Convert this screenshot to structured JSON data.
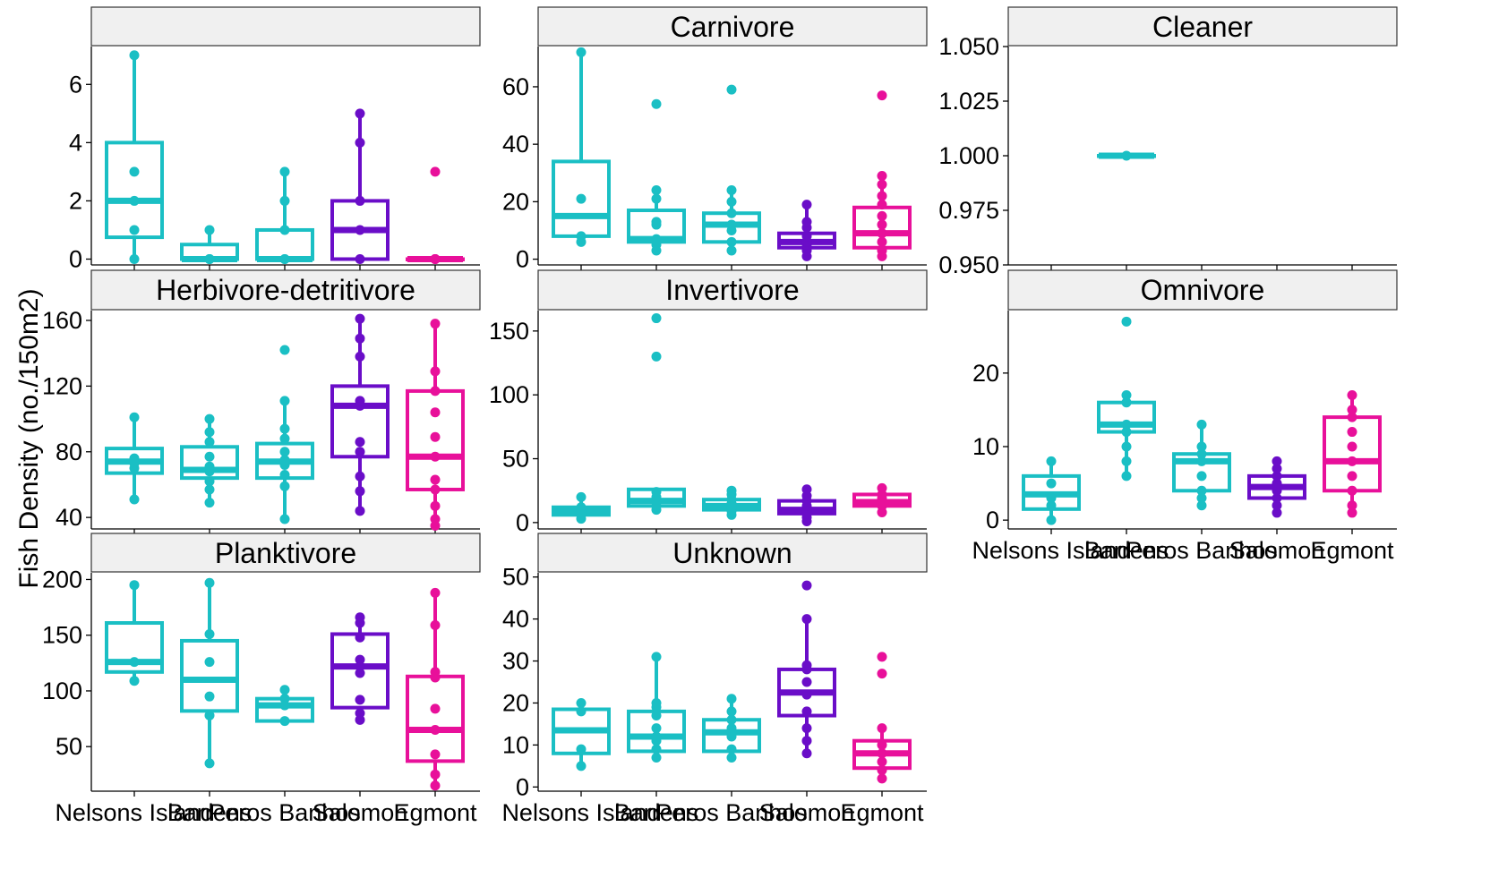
{
  "figure": {
    "ylabel": "Fish Density (no./150m2)",
    "colors": {
      "Nelsons Island": "#1ABFC4",
      "Barrens": "#1ABFC4",
      "Peros Banhos": "#1ABFC4",
      "Salomon": "#6A0DC8",
      "Egmont": "#E8109A"
    }
  },
  "chart_data": [
    {
      "type": "box",
      "title": "",
      "categories": [
        "Nelsons Island",
        "Barrens",
        "Peros Banhos",
        "Salomon",
        "Egmont"
      ],
      "yticks": [
        0,
        2,
        4,
        6
      ],
      "ylim": [
        -0.2,
        7.3
      ],
      "boxes": [
        {
          "category": "Nelsons Island",
          "q1": 0.75,
          "median": 2,
          "q3": 4,
          "whisker_low": 0,
          "whisker_high": 7,
          "points": [
            0,
            1,
            2,
            3,
            7
          ]
        },
        {
          "category": "Barrens",
          "q1": 0,
          "median": 0,
          "q3": 0.5,
          "whisker_low": 0,
          "whisker_high": 1,
          "points": [
            0,
            0,
            0,
            1
          ]
        },
        {
          "category": "Peros Banhos",
          "q1": 0,
          "median": 0,
          "q3": 1,
          "whisker_low": 0,
          "whisker_high": 3,
          "points": [
            0,
            0,
            1,
            2,
            3
          ]
        },
        {
          "category": "Salomon",
          "q1": 0,
          "median": 1,
          "q3": 2,
          "whisker_low": 0,
          "whisker_high": 5,
          "points": [
            0,
            1,
            2,
            4,
            5
          ]
        },
        {
          "category": "Egmont",
          "q1": 0,
          "median": 0,
          "q3": 0,
          "whisker_low": 0,
          "whisker_high": 0,
          "points": [
            0,
            0,
            0,
            3
          ]
        }
      ]
    },
    {
      "type": "box",
      "title": "Carnivore",
      "categories": [
        "Nelsons Island",
        "Barrens",
        "Peros Banhos",
        "Salomon",
        "Egmont"
      ],
      "yticks": [
        0,
        20,
        40,
        60
      ],
      "ylim": [
        -2,
        74
      ],
      "boxes": [
        {
          "category": "Nelsons Island",
          "q1": 8,
          "median": 15,
          "q3": 34,
          "whisker_low": 6,
          "whisker_high": 72,
          "points": [
            6,
            8,
            21,
            72
          ]
        },
        {
          "category": "Barrens",
          "q1": 6,
          "median": 7,
          "q3": 17,
          "whisker_low": 3,
          "whisker_high": 24,
          "points": [
            3,
            5,
            7,
            12,
            13,
            21,
            24,
            54
          ]
        },
        {
          "category": "Peros Banhos",
          "q1": 6,
          "median": 12,
          "q3": 16,
          "whisker_low": 3,
          "whisker_high": 24,
          "points": [
            3,
            6,
            10,
            12,
            16,
            20,
            24,
            59
          ]
        },
        {
          "category": "Salomon",
          "q1": 4,
          "median": 6,
          "q3": 9,
          "whisker_low": 0.5,
          "whisker_high": 19,
          "points": [
            1,
            3,
            5,
            6,
            8,
            11,
            13,
            19
          ]
        },
        {
          "category": "Egmont",
          "q1": 4,
          "median": 9,
          "q3": 18,
          "whisker_low": 0.5,
          "whisker_high": 29,
          "points": [
            1,
            3,
            6,
            9,
            12,
            15,
            19,
            22,
            26,
            29,
            57
          ]
        }
      ]
    },
    {
      "type": "box",
      "title": "Cleaner",
      "categories": [
        "Barrens"
      ],
      "yticks": [
        0.95,
        0.975,
        1.0,
        1.025,
        1.05
      ],
      "ytick_labels": [
        "0.950",
        "0.975",
        "1.000",
        "1.025",
        "1.050"
      ],
      "ylim": [
        0.95,
        1.05
      ],
      "boxes": [
        {
          "category": "Barrens",
          "q1": 1.0,
          "median": 1.0,
          "q3": 1.0,
          "whisker_low": 1.0,
          "whisker_high": 1.0,
          "points": [
            1.0
          ]
        }
      ]
    },
    {
      "type": "box",
      "title": "Herbivore-detritivore",
      "categories": [
        "Nelsons Island",
        "Barrens",
        "Peros Banhos",
        "Salomon",
        "Egmont"
      ],
      "yticks": [
        40,
        80,
        120,
        160
      ],
      "ylim": [
        33,
        166
      ],
      "boxes": [
        {
          "category": "Nelsons Island",
          "q1": 67,
          "median": 74,
          "q3": 82,
          "whisker_low": 51,
          "whisker_high": 101,
          "points": [
            51,
            70,
            73,
            76,
            101
          ]
        },
        {
          "category": "Barrens",
          "q1": 64,
          "median": 69,
          "q3": 83,
          "whisker_low": 49,
          "whisker_high": 100,
          "points": [
            49,
            57,
            62,
            68,
            71,
            77,
            86,
            92,
            100
          ]
        },
        {
          "category": "Peros Banhos",
          "q1": 64,
          "median": 74,
          "q3": 85,
          "whisker_low": 39,
          "whisker_high": 111,
          "points": [
            39,
            59,
            66,
            72,
            75,
            80,
            88,
            94,
            111,
            142
          ]
        },
        {
          "category": "Salomon",
          "q1": 77,
          "median": 108,
          "q3": 120,
          "whisker_low": 44,
          "whisker_high": 161,
          "points": [
            44,
            56,
            65,
            80,
            86,
            108,
            111,
            138,
            149,
            161
          ]
        },
        {
          "category": "Egmont",
          "q1": 57,
          "median": 77,
          "q3": 117,
          "whisker_low": 35,
          "whisker_high": 158,
          "points": [
            35,
            39,
            47,
            57,
            63,
            77,
            89,
            104,
            117,
            129,
            158
          ]
        }
      ]
    },
    {
      "type": "box",
      "title": "Invertivore",
      "categories": [
        "Nelsons Island",
        "Barrens",
        "Peros Banhos",
        "Salomon",
        "Egmont"
      ],
      "yticks": [
        0,
        50,
        100,
        150
      ],
      "ylim": [
        -5,
        166
      ],
      "boxes": [
        {
          "category": "Nelsons Island",
          "q1": 6,
          "median": 9,
          "q3": 12,
          "whisker_low": 3,
          "whisker_high": 20,
          "points": [
            3,
            6,
            9,
            12,
            20
          ]
        },
        {
          "category": "Barrens",
          "q1": 13,
          "median": 17,
          "q3": 26,
          "whisker_low": 10,
          "whisker_high": 26,
          "points": [
            10,
            13,
            16,
            20,
            24,
            130,
            160
          ]
        },
        {
          "category": "Peros Banhos",
          "q1": 10,
          "median": 13,
          "q3": 18,
          "whisker_low": 6,
          "whisker_high": 25,
          "points": [
            6,
            9,
            12,
            15,
            18,
            22,
            25
          ]
        },
        {
          "category": "Salomon",
          "q1": 7,
          "median": 10,
          "q3": 17,
          "whisker_low": 0.5,
          "whisker_high": 26,
          "points": [
            1,
            4,
            7,
            10,
            13,
            17,
            21,
            26
          ]
        },
        {
          "category": "Egmont",
          "q1": 13,
          "median": 16,
          "q3": 22,
          "whisker_low": 8,
          "whisker_high": 27,
          "points": [
            8,
            13,
            16,
            19,
            22,
            27
          ]
        }
      ]
    },
    {
      "type": "box",
      "title": "Omnivore",
      "categories": [
        "Nelsons Island",
        "Barrens",
        "Peros Banhos",
        "Salomon",
        "Egmont"
      ],
      "yticks": [
        0,
        10,
        20
      ],
      "ylim": [
        -1.2,
        28.5
      ],
      "boxes": [
        {
          "category": "Nelsons Island",
          "q1": 1.5,
          "median": 3.5,
          "q3": 6,
          "whisker_low": 0,
          "whisker_high": 8,
          "points": [
            0,
            2,
            3,
            5,
            8
          ]
        },
        {
          "category": "Barrens",
          "q1": 12,
          "median": 13,
          "q3": 16,
          "whisker_low": 6,
          "whisker_high": 17,
          "points": [
            6,
            8,
            10,
            12,
            13,
            16,
            17,
            27
          ]
        },
        {
          "category": "Peros Banhos",
          "q1": 4,
          "median": 8,
          "q3": 9,
          "whisker_low": 2,
          "whisker_high": 13,
          "points": [
            2,
            3,
            4,
            6,
            8,
            9,
            10,
            13
          ]
        },
        {
          "category": "Salomon",
          "q1": 3,
          "median": 4.5,
          "q3": 6,
          "whisker_low": 1,
          "whisker_high": 8,
          "points": [
            1,
            2,
            3,
            4,
            5,
            6,
            7,
            8
          ]
        },
        {
          "category": "Egmont",
          "q1": 4,
          "median": 8,
          "q3": 14,
          "whisker_low": 1,
          "whisker_high": 17,
          "points": [
            1,
            2,
            4,
            6,
            8,
            10,
            12,
            14,
            15,
            17
          ]
        }
      ]
    },
    {
      "type": "box",
      "title": "Planktivore",
      "categories": [
        "Nelsons Island",
        "Barrens",
        "Peros Banhos",
        "Salomon",
        "Egmont"
      ],
      "yticks": [
        50,
        100,
        150,
        200
      ],
      "ylim": [
        10,
        206
      ],
      "boxes": [
        {
          "category": "Nelsons Island",
          "q1": 117,
          "median": 126,
          "q3": 161,
          "whisker_low": 109,
          "whisker_high": 195,
          "points": [
            109,
            126,
            195
          ]
        },
        {
          "category": "Barrens",
          "q1": 82,
          "median": 110,
          "q3": 145,
          "whisker_low": 35,
          "whisker_high": 197,
          "points": [
            35,
            78,
            95,
            126,
            151,
            197
          ]
        },
        {
          "category": "Peros Banhos",
          "q1": 73,
          "median": 87,
          "q3": 93,
          "whisker_low": 73,
          "whisker_high": 101,
          "points": [
            73,
            87,
            93,
            101
          ]
        },
        {
          "category": "Salomon",
          "q1": 85,
          "median": 122,
          "q3": 151,
          "whisker_low": 74,
          "whisker_high": 166,
          "points": [
            74,
            80,
            92,
            116,
            122,
            128,
            148,
            161,
            166
          ]
        },
        {
          "category": "Egmont",
          "q1": 37,
          "median": 65,
          "q3": 113,
          "whisker_low": 15,
          "whisker_high": 188,
          "points": [
            15,
            25,
            43,
            65,
            84,
            112,
            117,
            159,
            188
          ]
        }
      ]
    },
    {
      "type": "box",
      "title": "Unknown",
      "categories": [
        "Nelsons Island",
        "Barrens",
        "Peros Banhos",
        "Salomon",
        "Egmont"
      ],
      "yticks": [
        0,
        10,
        20,
        30,
        40,
        50
      ],
      "ylim": [
        -1,
        51
      ],
      "boxes": [
        {
          "category": "Nelsons Island",
          "q1": 8,
          "median": 13.5,
          "q3": 18.5,
          "whisker_low": 5,
          "whisker_high": 20,
          "points": [
            5,
            9,
            18,
            20
          ]
        },
        {
          "category": "Barrens",
          "q1": 8.5,
          "median": 12,
          "q3": 18,
          "whisker_low": 7,
          "whisker_high": 31,
          "points": [
            7,
            9,
            11,
            12,
            14,
            17,
            19,
            20,
            31
          ]
        },
        {
          "category": "Peros Banhos",
          "q1": 8.5,
          "median": 13,
          "q3": 16,
          "whisker_low": 7,
          "whisker_high": 21,
          "points": [
            7,
            9,
            12,
            14,
            16,
            18,
            21
          ]
        },
        {
          "category": "Salomon",
          "q1": 17,
          "median": 22.5,
          "q3": 28,
          "whisker_low": 8,
          "whisker_high": 40,
          "points": [
            8,
            11,
            14,
            18,
            22,
            25,
            28,
            29,
            40,
            48
          ]
        },
        {
          "category": "Egmont",
          "q1": 4.5,
          "median": 8,
          "q3": 11,
          "whisker_low": 2,
          "whisker_high": 14,
          "points": [
            2,
            4,
            6,
            8,
            10,
            14,
            27,
            31
          ]
        }
      ]
    }
  ]
}
